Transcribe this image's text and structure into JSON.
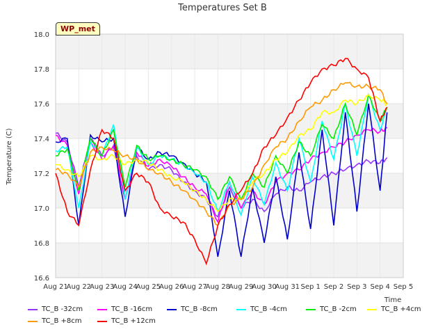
{
  "chart_data": {
    "type": "line",
    "title": "Temperatures Set B",
    "xlabel": "Time",
    "ylabel": "Temperature (C)",
    "badge": "WP_met",
    "ylim": [
      16.6,
      18.0
    ],
    "yticks": [
      "16.6",
      "16.8",
      "17.0",
      "17.2",
      "17.4",
      "17.6",
      "17.8",
      "18.0"
    ],
    "xticks": [
      "Aug 21",
      "Aug 22",
      "Aug 23",
      "Aug 24",
      "Aug 25",
      "Aug 26",
      "Aug 27",
      "Aug 28",
      "Aug 29",
      "Aug 30",
      "Aug 31",
      "Sep 1",
      "Sep 2",
      "Sep 3",
      "Sep 4",
      "Sep 5"
    ],
    "xlim_days": [
      0,
      15
    ],
    "x_days": [
      0,
      0.5,
      1,
      1.5,
      2,
      2.5,
      3,
      3.5,
      4,
      4.5,
      5,
      5.5,
      6,
      6.5,
      7,
      7.5,
      8,
      8.5,
      9,
      9.5,
      10,
      10.5,
      11,
      11.5,
      12,
      12.5,
      13,
      13.5,
      14,
      14.3
    ],
    "series": [
      {
        "name": "TC_B -32cm",
        "color": "#9933ff",
        "values": [
          17.43,
          17.38,
          17.12,
          17.4,
          17.3,
          17.35,
          17.05,
          17.3,
          17.22,
          17.25,
          17.22,
          17.15,
          17.1,
          17.05,
          16.95,
          17.12,
          17.0,
          17.05,
          16.98,
          17.08,
          17.12,
          17.1,
          17.15,
          17.18,
          17.2,
          17.22,
          17.25,
          17.27,
          17.26,
          17.29
        ]
      },
      {
        "name": "TC_B -16cm",
        "color": "#ff00ff",
        "values": [
          17.42,
          17.36,
          17.08,
          17.38,
          17.28,
          17.36,
          17.05,
          17.32,
          17.24,
          17.28,
          17.24,
          17.18,
          17.12,
          17.08,
          16.92,
          17.15,
          17.0,
          17.1,
          17.02,
          17.15,
          17.2,
          17.22,
          17.28,
          17.32,
          17.35,
          17.38,
          17.42,
          17.45,
          17.44,
          17.46
        ]
      },
      {
        "name": "TC_B -8cm",
        "color": "#0000cc",
        "values": [
          17.38,
          17.4,
          16.9,
          17.42,
          17.38,
          17.4,
          16.95,
          17.35,
          17.28,
          17.32,
          17.3,
          17.26,
          17.2,
          17.15,
          16.72,
          17.1,
          16.72,
          17.12,
          16.8,
          17.18,
          16.82,
          17.32,
          16.88,
          17.45,
          16.9,
          17.55,
          16.98,
          17.6,
          17.1,
          17.55
        ]
      },
      {
        "name": "TC_B -4cm",
        "color": "#00ffff",
        "values": [
          17.33,
          17.35,
          17.0,
          17.38,
          17.3,
          17.48,
          17.05,
          17.35,
          17.25,
          17.3,
          17.28,
          17.25,
          17.2,
          17.15,
          16.98,
          17.15,
          16.96,
          17.18,
          17.02,
          17.26,
          17.1,
          17.4,
          17.15,
          17.5,
          17.28,
          17.6,
          17.3,
          17.65,
          17.45,
          17.58
        ]
      },
      {
        "name": "TC_B -2cm",
        "color": "#00ee00",
        "values": [
          17.3,
          17.34,
          17.1,
          17.4,
          17.3,
          17.45,
          17.12,
          17.36,
          17.28,
          17.3,
          17.28,
          17.25,
          17.22,
          17.18,
          17.05,
          17.18,
          17.05,
          17.2,
          17.12,
          17.3,
          17.2,
          17.38,
          17.3,
          17.48,
          17.4,
          17.6,
          17.42,
          17.65,
          17.5,
          17.58
        ]
      },
      {
        "name": "TC_B +4cm",
        "color": "#ffff00",
        "values": [
          17.25,
          17.22,
          17.18,
          17.3,
          17.28,
          17.3,
          17.25,
          17.28,
          17.26,
          17.22,
          17.18,
          17.15,
          17.1,
          17.05,
          16.98,
          17.05,
          17.05,
          17.15,
          17.2,
          17.28,
          17.32,
          17.42,
          17.45,
          17.55,
          17.55,
          17.62,
          17.6,
          17.65,
          17.62,
          17.6
        ]
      },
      {
        "name": "TC_B +8cm",
        "color": "#ff9900",
        "values": [
          17.22,
          17.2,
          17.12,
          17.32,
          17.35,
          17.33,
          17.3,
          17.28,
          17.22,
          17.2,
          17.15,
          17.1,
          17.05,
          16.98,
          16.9,
          17.02,
          17.05,
          17.12,
          17.25,
          17.35,
          17.4,
          17.5,
          17.58,
          17.62,
          17.68,
          17.72,
          17.7,
          17.7,
          17.68,
          17.6
        ]
      },
      {
        "name": "TC_B +12cm",
        "color": "#ff0000",
        "values": [
          17.2,
          16.98,
          16.9,
          17.22,
          17.45,
          17.4,
          17.1,
          17.2,
          17.15,
          17.0,
          16.95,
          16.92,
          16.82,
          16.68,
          16.9,
          17.02,
          17.1,
          17.2,
          17.35,
          17.42,
          17.52,
          17.62,
          17.72,
          17.8,
          17.82,
          17.86,
          17.8,
          17.75,
          17.5,
          17.58
        ]
      }
    ]
  },
  "legend": [
    [
      "TC_B -32cm",
      "TC_B -16cm",
      "TC_B -8cm",
      "TC_B -4cm",
      "TC_B -2cm",
      "TC_B +4cm"
    ],
    [
      "TC_B +8cm",
      "TC_B +12cm"
    ]
  ]
}
